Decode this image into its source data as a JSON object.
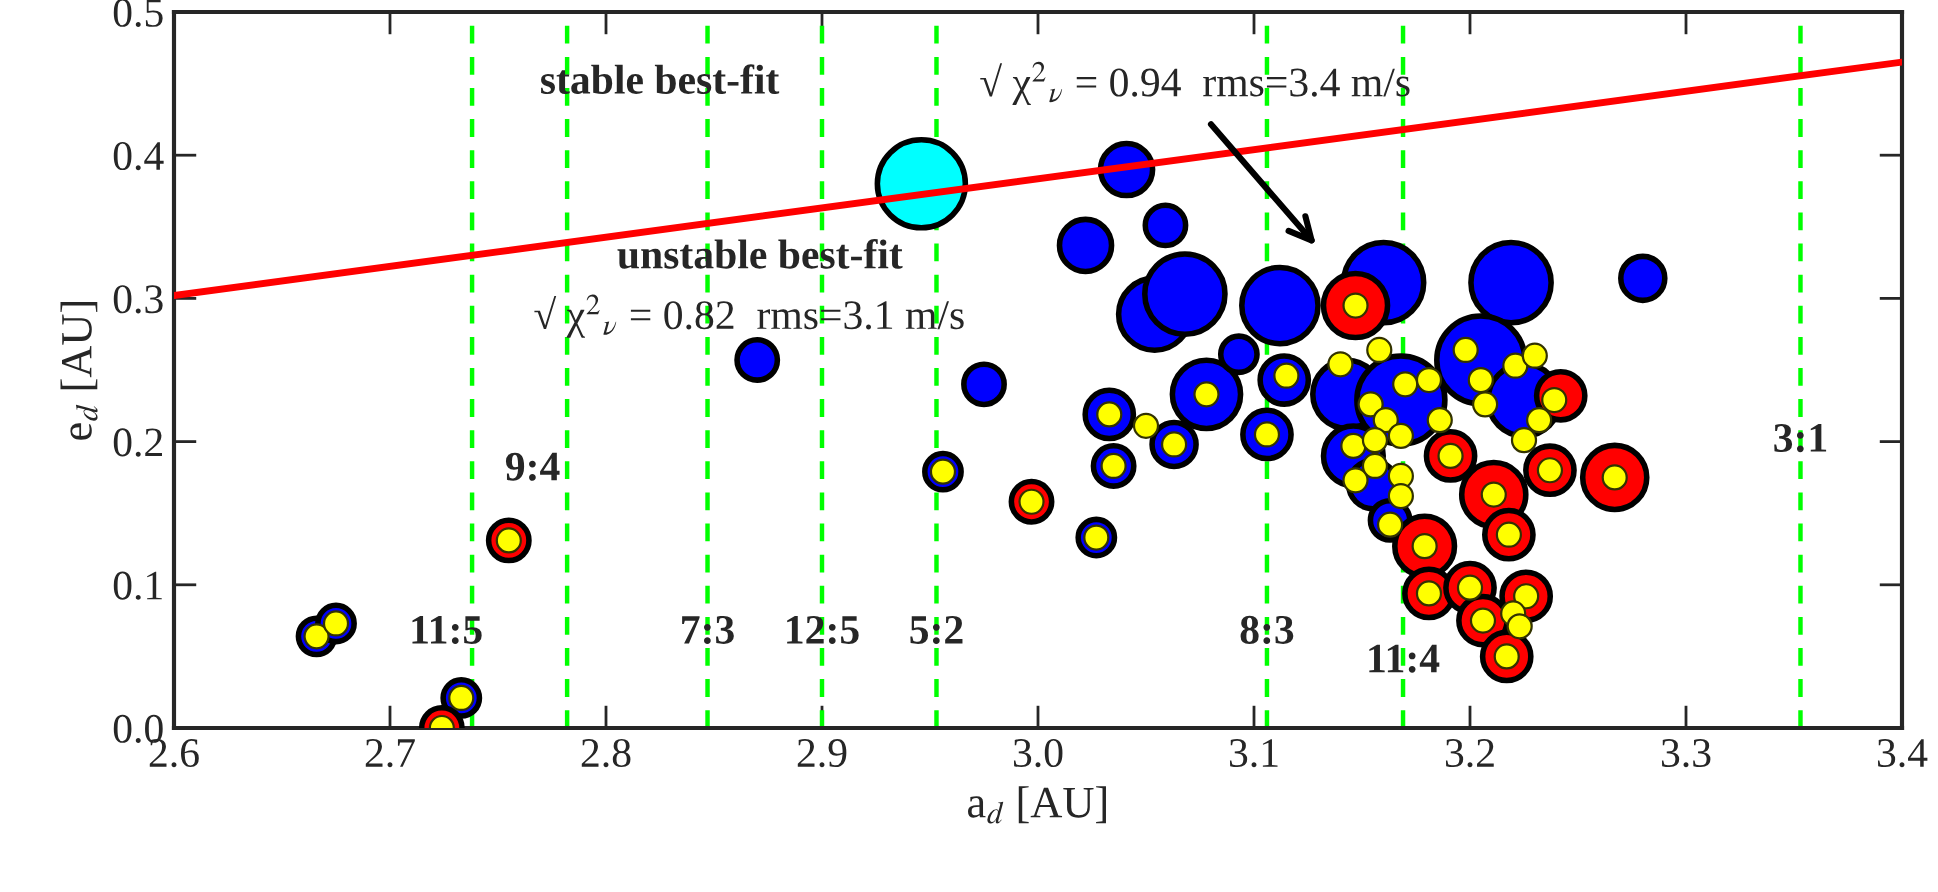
{
  "chart_data": {
    "type": "bubble",
    "xlabel": "a$_{d}$ [AU]",
    "ylabel": "e$_{d}$ [AU]",
    "xlim": [
      2.6,
      3.4
    ],
    "ylim": [
      0,
      0.5
    ],
    "xticks": [
      2.6,
      2.7,
      2.8,
      2.9,
      {
        "value": 3.0,
        "label": "3.0"
      },
      3.1,
      3.2,
      3.3,
      3.4
    ],
    "yticks": [
      {
        "value": 0.0,
        "label": "0.0"
      },
      0.1,
      0.2,
      0.3,
      0.4,
      0.5
    ],
    "grid": false,
    "legend": false,
    "series": [
      {
        "color": "#0000ff",
        "x": [
          2.666,
          2.675,
          2.733,
          2.87,
          2.975,
          2.956,
          3.027,
          3.041,
          3.059,
          3.022,
          3.054,
          3.068,
          3.112,
          3.078,
          3.033,
          3.063,
          3.035,
          3.106,
          3.114,
          3.093,
          3.143,
          3.16,
          3.219,
          3.28,
          3.168,
          3.205,
          3.225,
          3.146,
          3.155,
          3.163
        ],
        "values": [
          0.064,
          0.073,
          0.021,
          0.257,
          0.24,
          0.179,
          0.133,
          0.39,
          0.351,
          0.337,
          0.289,
          0.303,
          0.295,
          0.233,
          0.219,
          0.198,
          0.183,
          0.205,
          0.243,
          0.261,
          0.233,
          0.311,
          0.311,
          0.314,
          0.229,
          0.257,
          0.229,
          0.19,
          0.17,
          0.145
        ],
        "sizes": [
          0.17,
          0.17,
          0.17,
          0.21,
          0.21,
          0.17,
          0.17,
          0.35,
          0.21,
          0.35,
          0.67,
          0.83,
          0.75,
          0.6,
          0.3,
          0.25,
          0.21,
          0.3,
          0.3,
          0.17,
          0.6,
          0.83,
          0.83,
          0.25,
          1,
          1,
          0.67,
          0.46,
          0.3,
          0.2
        ]
      },
      {
        "color": "#00ffff",
        "x": [
          2.946
        ],
        "values": [
          0.38
        ],
        "sizes": [
          1
        ]
      },
      {
        "color": "#ff0000",
        "x": [
          2.724,
          2.755,
          2.997,
          3.147,
          3.242,
          3.191,
          3.237,
          3.267,
          3.211,
          3.218,
          3.179,
          3.181,
          3.2,
          3.206,
          3.226,
          3.217
        ],
        "values": [
          0.0,
          0.131,
          0.158,
          0.295,
          0.232,
          0.19,
          0.18,
          0.175,
          0.163,
          0.135,
          0.127,
          0.094,
          0.098,
          0.075,
          0.092,
          0.05
        ],
        "sizes": [
          0.21,
          0.21,
          0.21,
          0.53,
          0.3,
          0.3,
          0.3,
          0.53,
          0.53,
          0.3,
          0.46,
          0.3,
          0.3,
          0.3,
          0.3,
          0.3
        ]
      },
      {
        "type": "scatter",
        "color": "#ffff00",
        "x": [
          2.666,
          2.675,
          2.733,
          2.956,
          3.027,
          3.078,
          3.033,
          3.063,
          3.035,
          3.106,
          3.05,
          2.724,
          2.755,
          2.997,
          3.147,
          3.191,
          3.237,
          3.267,
          3.211,
          3.218,
          3.179,
          3.181,
          3.2,
          3.206,
          3.226,
          3.217,
          3.14,
          3.158,
          3.115,
          3.154,
          3.161,
          3.17,
          3.181,
          3.198,
          3.205,
          3.207,
          3.221,
          3.23,
          3.232,
          3.225,
          3.239,
          3.186,
          3.146,
          3.156,
          3.168,
          3.147,
          3.156,
          3.168,
          3.168,
          3.163,
          3.22,
          3.223
        ],
        "values": [
          0.064,
          0.073,
          0.021,
          0.179,
          0.133,
          0.233,
          0.219,
          0.198,
          0.183,
          0.205,
          0.211,
          0.0,
          0.131,
          0.158,
          0.295,
          0.19,
          0.18,
          0.175,
          0.163,
          0.135,
          0.127,
          0.094,
          0.098,
          0.075,
          0.092,
          0.05,
          0.254,
          0.264,
          0.246,
          0.226,
          0.215,
          0.24,
          0.243,
          0.264,
          0.243,
          0.226,
          0.253,
          0.26,
          0.215,
          0.201,
          0.229,
          0.215,
          0.197,
          0.201,
          0.204,
          0.173,
          0.183,
          0.176,
          0.162,
          0.142,
          0.08,
          0.071
        ]
      },
      {
        "type": "line",
        "color": "#ff0000",
        "x": [
          2.6,
          3.4
        ],
        "values": [
          0.302,
          0.465
        ]
      }
    ],
    "ref_lines": [
      {
        "axis": "x",
        "value": 2.738,
        "color": "#00ff00",
        "line_style": "dashed"
      },
      {
        "axis": "x",
        "value": 2.782,
        "color": "#00ff00",
        "line_style": "dashed"
      },
      {
        "axis": "x",
        "value": 2.847,
        "color": "#00ff00",
        "line_style": "dashed"
      },
      {
        "axis": "x",
        "value": 2.9,
        "color": "#00ff00",
        "line_style": "dashed"
      },
      {
        "axis": "x",
        "value": 2.953,
        "color": "#00ff00",
        "line_style": "dashed"
      },
      {
        "axis": "x",
        "value": 3.106,
        "color": "#00ff00",
        "line_style": "dashed"
      },
      {
        "axis": "x",
        "value": 3.169,
        "color": "#00ff00",
        "line_style": "dashed"
      },
      {
        "axis": "x",
        "value": 3.353,
        "color": "#00ff00",
        "line_style": "dashed"
      }
    ],
    "annotations": [
      "stable best-fit",
      "√ χ$^{2}$$_{ν}$ = 0.94  rms=3.4 m/s",
      "unstable best-fit",
      "√ χ$^{2}$$_{ν}$ = 0.82  rms=3.1 m/s",
      "11:5",
      "9:4",
      "7:3",
      "12:5",
      "5:2",
      "8:3",
      "11:4",
      "3:1"
    ]
  }
}
